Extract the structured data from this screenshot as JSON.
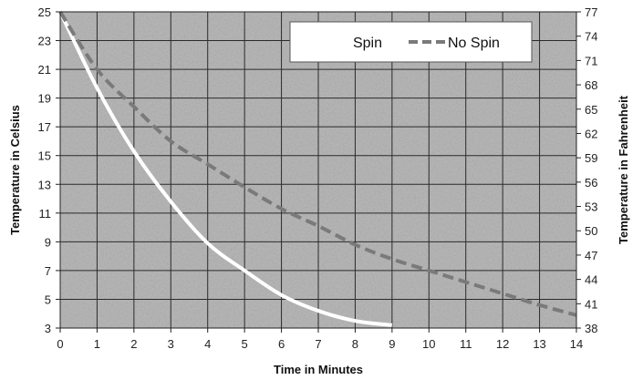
{
  "chart_data": {
    "type": "line",
    "xlabel": "Time in Minutes",
    "ylabel": "Temperature in Celsius",
    "ylabel_right": "Temperature in Fahrenheit",
    "xlim": [
      0,
      14
    ],
    "ylim": [
      3,
      25
    ],
    "ylim_right": [
      38,
      77
    ],
    "x_ticks": [
      "0",
      "1",
      "2",
      "3",
      "4",
      "5",
      "6",
      "7",
      "8",
      "9",
      "10",
      "11",
      "12",
      "13",
      "14"
    ],
    "y_ticks": [
      "3",
      "5",
      "7",
      "9",
      "11",
      "13",
      "15",
      "17",
      "19",
      "21",
      "23",
      "25"
    ],
    "y_ticks_right": [
      "38",
      "41",
      "44",
      "47",
      "50",
      "53",
      "56",
      "59",
      "62",
      "65",
      "68",
      "71",
      "74",
      "77"
    ],
    "grid": true,
    "legend_position": "top-right",
    "plot_background": "#b8b8b8",
    "series": [
      {
        "name": "Spin",
        "color": "#ffffff",
        "style": "solid",
        "x": [
          0,
          1,
          2,
          3,
          4,
          5,
          6,
          7,
          8,
          9
        ],
        "y": [
          25,
          19.7,
          15.3,
          11.8,
          8.9,
          7.0,
          5.3,
          4.2,
          3.5,
          3.2
        ]
      },
      {
        "name": "No Spin",
        "color": "#7a7a7a",
        "style": "dashed",
        "x": [
          0,
          1,
          2,
          3,
          4,
          5,
          6,
          7,
          8,
          9,
          10,
          11,
          12,
          13,
          14
        ],
        "y": [
          25,
          21.0,
          18.4,
          16.0,
          14.4,
          12.8,
          11.3,
          10.1,
          8.8,
          7.8,
          7.0,
          6.2,
          5.4,
          4.6,
          3.9
        ]
      }
    ]
  }
}
